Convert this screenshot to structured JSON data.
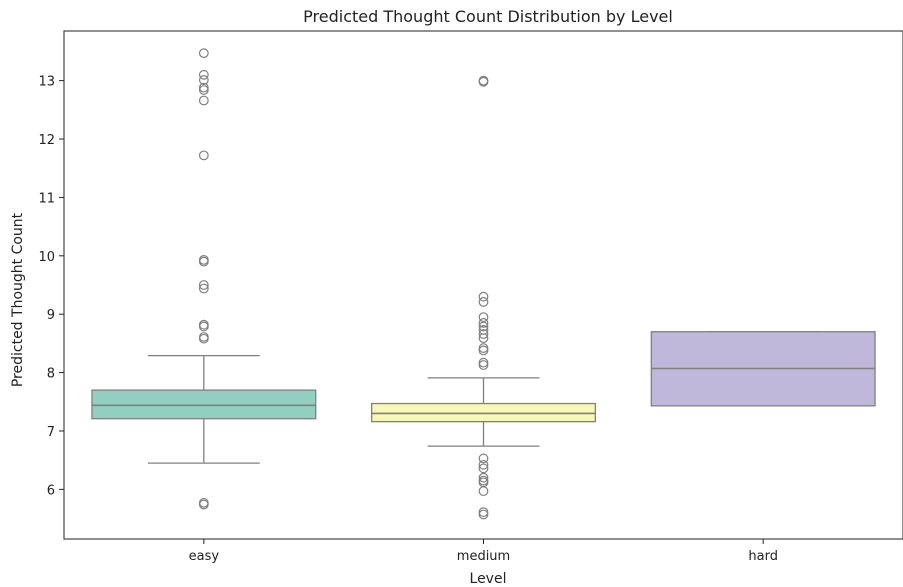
{
  "chart_data": {
    "type": "box",
    "title": "Predicted Thought Count Distribution by Level",
    "xlabel": "Level",
    "ylabel": "Predicted Thought Count",
    "ylim": [
      5.15,
      13.85
    ],
    "yticks": [
      6,
      7,
      8,
      9,
      10,
      11,
      12,
      13
    ],
    "grid": false,
    "categories": [
      "easy",
      "medium",
      "hard"
    ],
    "boxes": [
      {
        "category": "easy",
        "color": "#93cfc1",
        "whisker_low": 6.45,
        "q1": 7.21,
        "median": 7.44,
        "q3": 7.7,
        "whisker_high": 8.29,
        "outliers": [
          13.47,
          13.1,
          13.01,
          12.88,
          12.84,
          12.66,
          11.72,
          9.93,
          9.9,
          9.5,
          9.44,
          8.82,
          8.79,
          8.61,
          8.58,
          5.77,
          5.74
        ]
      },
      {
        "category": "medium",
        "color": "#f7f7b7",
        "whisker_low": 6.74,
        "q1": 7.16,
        "median": 7.3,
        "q3": 7.47,
        "whisker_high": 7.91,
        "outliers": [
          13.0,
          12.98,
          9.3,
          9.21,
          8.95,
          8.85,
          8.79,
          8.73,
          8.66,
          8.59,
          8.42,
          8.38,
          8.17,
          8.13,
          6.53,
          6.42,
          6.36,
          6.2,
          6.15,
          6.12,
          5.97,
          5.61,
          5.57
        ]
      },
      {
        "category": "hard",
        "color": "#bfb8da",
        "whisker_low": 7.43,
        "q1": 7.43,
        "median": 8.07,
        "q3": 8.7,
        "whisker_high": 8.7,
        "outliers": []
      }
    ]
  }
}
